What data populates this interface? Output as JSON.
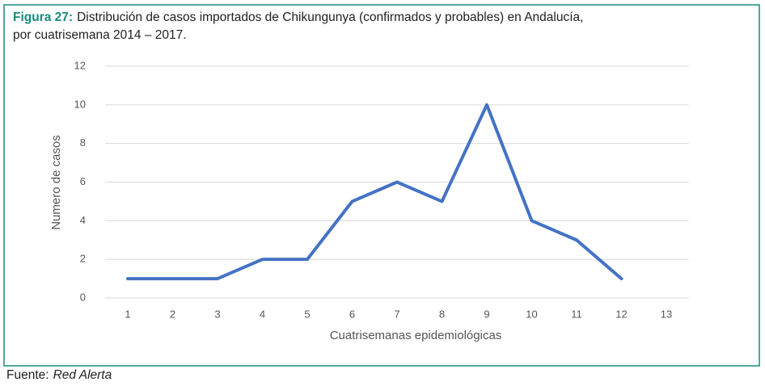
{
  "chart_data": {
    "type": "line",
    "title_prefix": "Figura 27:",
    "title_lines": [
      "Distribución de casos importados de Chikungunya (confirmados y probables) en Andalucía,",
      "por cuatrisemana 2014 – 2017."
    ],
    "x_label": "Cuatrisemanas epidemiológicas",
    "y_label": "Numero de casos",
    "categories": [
      "1",
      "2",
      "3",
      "4",
      "5",
      "6",
      "7",
      "8",
      "9",
      "10",
      "11",
      "12",
      "13"
    ],
    "values": [
      1,
      1,
      1,
      2,
      2,
      5,
      6,
      5,
      10,
      4,
      3,
      1,
      null
    ],
    "color": "#4472c4",
    "ylim": [
      0,
      12
    ],
    "yticks": [
      0,
      2,
      4,
      6,
      8,
      10,
      12
    ],
    "grid": true,
    "source_label": "Fuente:",
    "source": "Red Alerta"
  }
}
